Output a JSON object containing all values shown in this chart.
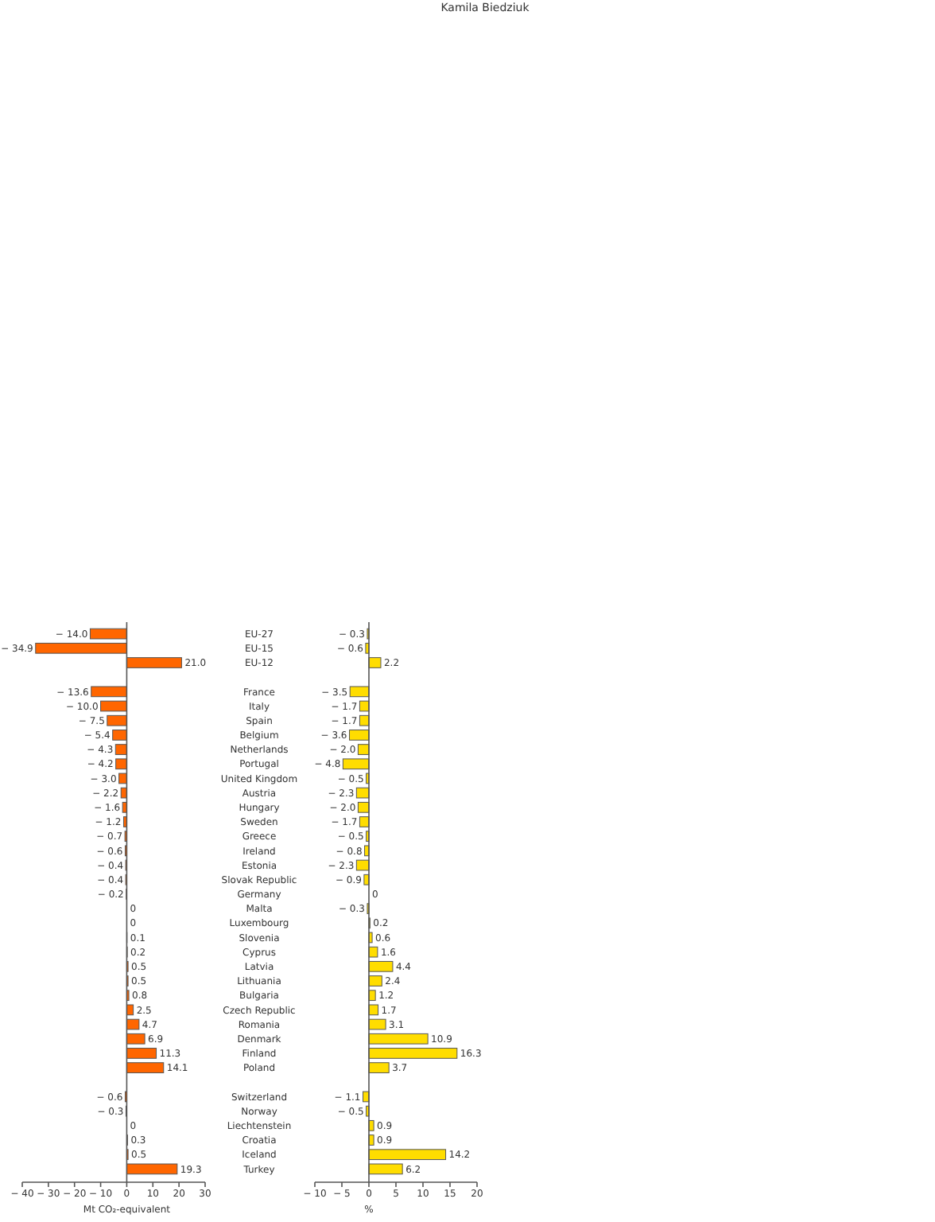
{
  "chart_data": [
    {
      "type": "bar",
      "orientation": "horizontal",
      "xlabel": "Mt CO₂-equivalent",
      "annotations": [
        "Kamila Biedziuk"
      ],
      "categories": [
        "EU-27",
        "EU-15",
        "EU-12",
        null,
        "France",
        "Italy",
        "Spain",
        "Belgium",
        "Netherlands",
        "Portugal",
        "United Kingdom",
        "Austria",
        "Hungary",
        "Sweden",
        "Greece",
        "Ireland",
        "Estonia",
        "Slovak Republic",
        "Germany",
        "Malta",
        "Luxembourg",
        "Slovenia",
        "Cyprus",
        "Latvia",
        "Lithuania",
        "Bulgaria",
        "Czech Republic",
        "Romania",
        "Denmark",
        "Finland",
        "Poland",
        null,
        "Switzerland",
        "Norway",
        "Liechtenstein",
        "Croatia",
        "Iceland",
        "Turkey"
      ],
      "values": [
        -14.0,
        -34.9,
        21.0,
        null,
        -13.6,
        -10.0,
        -7.5,
        -5.4,
        -4.3,
        -4.2,
        -3.0,
        -2.2,
        -1.6,
        -1.2,
        -0.7,
        -0.6,
        -0.4,
        -0.4,
        -0.2,
        0,
        0,
        0.1,
        0.2,
        0.5,
        0.5,
        0.8,
        2.5,
        4.7,
        6.9,
        11.3,
        14.1,
        null,
        -0.6,
        -0.3,
        0,
        0.3,
        0.5,
        19.3
      ],
      "value_labels": [
        "− 14.0",
        "− 34.9",
        "21.0",
        null,
        "− 13.6",
        "− 10.0",
        "− 7.5",
        "− 5.4",
        "− 4.3",
        "− 4.2",
        "− 3.0",
        "− 2.2",
        "− 1.6",
        "− 1.2",
        "− 0.7",
        "− 0.6",
        "− 0.4",
        "− 0.4",
        "− 0.2",
        "0",
        "0",
        "0.1",
        "0.2",
        "0.5",
        "0.5",
        "0.8",
        "2.5",
        "4.7",
        "6.9",
        "11.3",
        "14.1",
        null,
        "− 0.6",
        "− 0.3",
        "0",
        "0.3",
        "0.5",
        "19.3"
      ],
      "color": "#ff6600",
      "xlim": [
        -40,
        30
      ],
      "xticks": [
        {
          "value": -40,
          "label": "− 40"
        },
        {
          "value": -30,
          "label": "− 30"
        },
        {
          "value": -20,
          "label": "− 20"
        },
        {
          "value": -10,
          "label": "− 10"
        },
        0,
        10,
        20,
        30
      ]
    },
    {
      "type": "bar",
      "orientation": "horizontal",
      "xlabel": "%",
      "categories": [
        null,
        null,
        null,
        null,
        null,
        null,
        null,
        null,
        null,
        null,
        null,
        null,
        null,
        null,
        null,
        null,
        null,
        null,
        null,
        null,
        null,
        null,
        null,
        null,
        null,
        null,
        null,
        null,
        null,
        null,
        null,
        null,
        null,
        null,
        null,
        null,
        null,
        null
      ],
      "values": [
        -0.3,
        -0.6,
        2.2,
        null,
        -3.5,
        -1.7,
        -1.7,
        -3.6,
        -2.0,
        -4.8,
        -0.5,
        -2.3,
        -2.0,
        -1.7,
        -0.5,
        -0.8,
        -2.3,
        -0.9,
        0,
        -0.3,
        0.2,
        0.6,
        1.6,
        4.4,
        2.4,
        1.2,
        1.7,
        3.1,
        10.9,
        16.3,
        3.7,
        null,
        -1.1,
        -0.5,
        0.9,
        0.9,
        14.2,
        6.2
      ],
      "value_labels": [
        "− 0.3",
        "− 0.6",
        "2.2",
        null,
        "− 3.5",
        "− 1.7",
        "− 1.7",
        "− 3.6",
        "− 2.0",
        "− 4.8",
        "− 0.5",
        "− 2.3",
        "− 2.0",
        "− 1.7",
        "− 0.5",
        "− 0.8",
        "− 2.3",
        "− 0.9",
        "0",
        "− 0.3",
        "0.2",
        "0.6",
        "1.6",
        "4.4",
        "2.4",
        "1.2",
        "1.7",
        "3.1",
        "10.9",
        "16.3",
        "3.7",
        null,
        "− 1.1",
        "− 0.5",
        "0.9",
        "0.9",
        "14.2",
        "6.2"
      ],
      "color": "#ffdd00",
      "xlim": [
        -10,
        20
      ],
      "xticks": [
        {
          "value": -10,
          "label": "− 10"
        },
        {
          "value": -5,
          "label": "− 5"
        },
        0,
        5,
        10,
        15,
        20
      ]
    }
  ]
}
